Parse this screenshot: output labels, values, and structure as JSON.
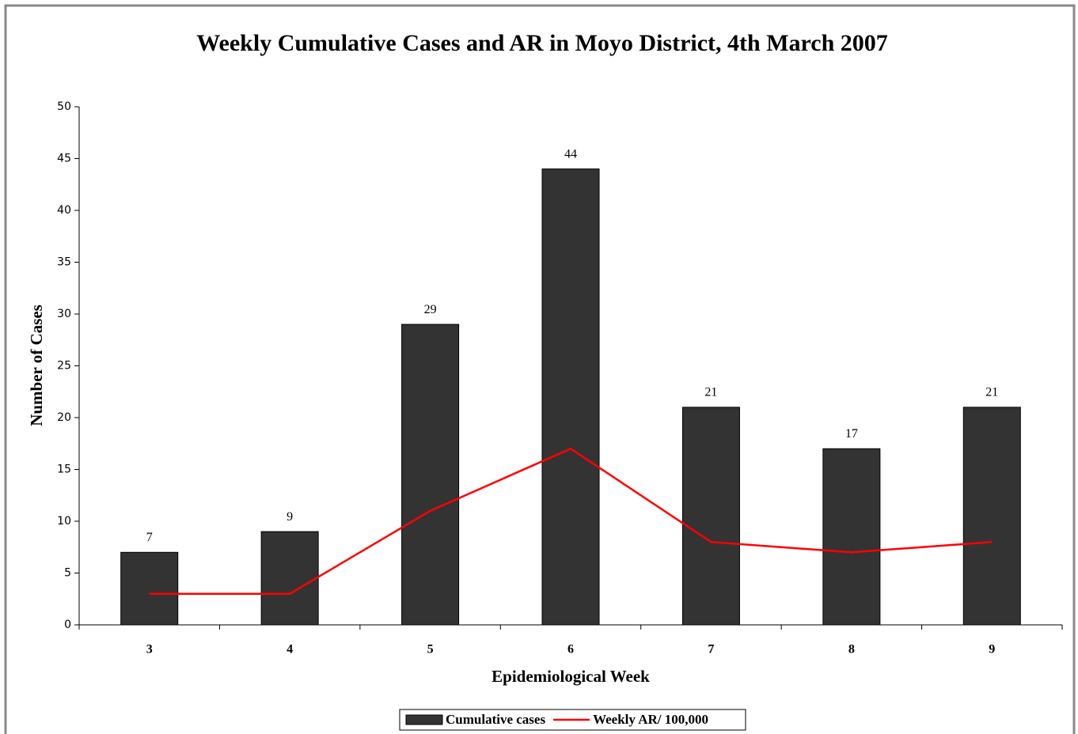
{
  "chart_data": {
    "type": "bar",
    "title": "Weekly Cumulative Cases and AR in Moyo District, 4th March 2007",
    "x_label": "Epidemiological Week",
    "y_label": "Number of Cases",
    "categories": [
      "3",
      "4",
      "5",
      "6",
      "7",
      "8",
      "9"
    ],
    "series": [
      {
        "name": "Cumulative cases",
        "type": "bar",
        "color": "#333333",
        "values": [
          7,
          9,
          29,
          44,
          21,
          17,
          21
        ]
      },
      {
        "name": "Weekly AR/ 100,000",
        "type": "line",
        "color": "#ff0000",
        "values": [
          3,
          3,
          11,
          17,
          8,
          7,
          8
        ]
      }
    ],
    "ylim": [
      0,
      50
    ],
    "yticks": [
      0,
      5,
      10,
      15,
      20,
      25,
      30,
      35,
      40,
      45,
      50
    ],
    "legend": "bottom"
  }
}
